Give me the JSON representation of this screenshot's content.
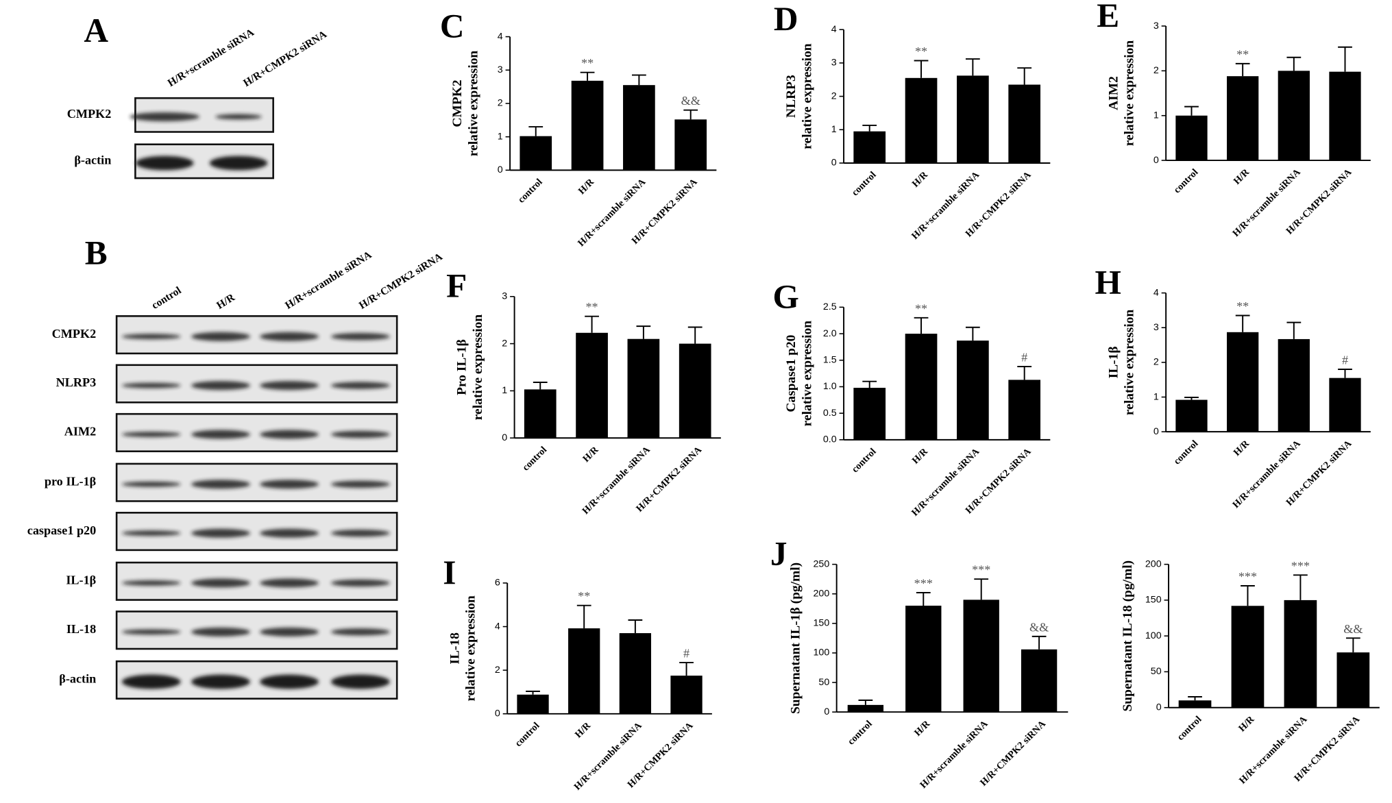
{
  "blots": [
    {
      "panel": "A",
      "lanes": [
        "H/R+scramble siRNA",
        "H/R+CMPK2 siRNA"
      ],
      "rows": [
        "CMPK2",
        "β-actin"
      ]
    },
    {
      "panel": "B",
      "lanes": [
        "control",
        "H/R",
        "H/R+scramble siRNA",
        "H/R+CMPK2 siRNA"
      ],
      "rows": [
        "CMPK2",
        "NLRP3",
        "AIM2",
        "pro IL-1β",
        "caspase1 p20",
        "IL-1β",
        "IL-18",
        "β-actin"
      ]
    }
  ],
  "chart_data": [
    {
      "type": "bar",
      "panel": "C",
      "ylabel": [
        "CMPK2",
        "relative expression"
      ],
      "categories": [
        "control",
        "H/R",
        "H/R+scramble siRNA",
        "H/R+CMPK2 siRNA"
      ],
      "values": [
        1.02,
        2.68,
        2.55,
        1.52
      ],
      "errors": [
        0.28,
        0.25,
        0.3,
        0.28
      ],
      "annotations": [
        null,
        "**",
        null,
        "&&"
      ],
      "ylim": [
        0,
        4
      ],
      "yticks": [
        0,
        1,
        2,
        3,
        4
      ],
      "color": "#000000"
    },
    {
      "type": "bar",
      "panel": "D",
      "ylabel": [
        "NLRP3",
        "relative expression"
      ],
      "categories": [
        "control",
        "H/R",
        "H/R+scramble siRNA",
        "H/R+CMPK2 siRNA"
      ],
      "values": [
        0.95,
        2.55,
        2.62,
        2.35
      ],
      "errors": [
        0.18,
        0.52,
        0.5,
        0.5
      ],
      "annotations": [
        null,
        "**",
        null,
        null
      ],
      "ylim": [
        0,
        4
      ],
      "yticks": [
        0,
        1,
        2,
        3,
        4
      ],
      "color": "#000000"
    },
    {
      "type": "bar",
      "panel": "E",
      "ylabel": [
        "AIM2",
        "relative expression"
      ],
      "categories": [
        "control",
        "H/R",
        "H/R+scramble siRNA",
        "H/R+CMPK2 siRNA"
      ],
      "values": [
        1.0,
        1.88,
        2.0,
        1.98
      ],
      "errors": [
        0.2,
        0.28,
        0.3,
        0.55
      ],
      "annotations": [
        null,
        "**",
        null,
        null
      ],
      "ylim": [
        0,
        3
      ],
      "yticks": [
        0,
        1,
        2,
        3
      ],
      "color": "#000000"
    },
    {
      "type": "bar",
      "panel": "F",
      "ylabel": [
        "Pro IL-1β",
        "relative expression"
      ],
      "categories": [
        "control",
        "H/R",
        "H/R+scramble siRNA",
        "H/R+CMPK2 siRNA"
      ],
      "values": [
        1.03,
        2.23,
        2.1,
        2.0
      ],
      "errors": [
        0.15,
        0.35,
        0.27,
        0.35
      ],
      "annotations": [
        null,
        "**",
        null,
        null
      ],
      "ylim": [
        0,
        3
      ],
      "yticks": [
        0,
        1,
        2,
        3
      ],
      "color": "#000000"
    },
    {
      "type": "bar",
      "panel": "G",
      "ylabel": [
        "Caspase1 p20",
        "relative expression"
      ],
      "categories": [
        "control",
        "H/R",
        "H/R+scramble siRNA",
        "H/R+CMPK2 siRNA"
      ],
      "values": [
        0.98,
        2.0,
        1.87,
        1.13
      ],
      "errors": [
        0.12,
        0.3,
        0.25,
        0.25
      ],
      "annotations": [
        null,
        "**",
        null,
        "#"
      ],
      "ylim": [
        0,
        2.5
      ],
      "yticks": [
        {
          "value": 0,
          "label": "0.0"
        },
        0.5,
        {
          "value": 1,
          "label": "1.0"
        },
        1.5,
        {
          "value": 2,
          "label": "2.0"
        },
        2.5
      ],
      "color": "#000000"
    },
    {
      "type": "bar",
      "panel": "H",
      "ylabel": [
        "IL-1β",
        "relative expression"
      ],
      "categories": [
        "control",
        "H/R",
        "H/R+scramble siRNA",
        "H/R+CMPK2 siRNA"
      ],
      "values": [
        0.92,
        2.87,
        2.67,
        1.55
      ],
      "errors": [
        0.07,
        0.48,
        0.48,
        0.25
      ],
      "annotations": [
        null,
        "**",
        null,
        "#"
      ],
      "ylim": [
        0,
        4
      ],
      "yticks": [
        0,
        1,
        2,
        3,
        4
      ],
      "color": "#000000"
    },
    {
      "type": "bar",
      "panel": "I",
      "ylabel": [
        "IL-18",
        "relative expression"
      ],
      "categories": [
        "control",
        "H/R",
        "H/R+scramble siRNA",
        "H/R+CMPK2 siRNA"
      ],
      "values": [
        0.88,
        3.92,
        3.7,
        1.75
      ],
      "errors": [
        0.15,
        1.05,
        0.6,
        0.6
      ],
      "annotations": [
        null,
        "**",
        null,
        "#"
      ],
      "ylim": [
        0,
        6
      ],
      "yticks": [
        0,
        2,
        4,
        6
      ],
      "color": "#000000"
    },
    {
      "type": "bar",
      "panel": "J",
      "ylabel": [
        "Supernatant IL-1β (pg/ml)"
      ],
      "categories": [
        "control",
        "H/R",
        "H/R+scramble siRNA",
        "H/R+CMPK2 siRNA"
      ],
      "values": [
        12,
        180,
        190,
        106
      ],
      "errors": [
        8,
        22,
        35,
        22
      ],
      "annotations": [
        null,
        "***",
        "***",
        "&&"
      ],
      "ylim": [
        0,
        250
      ],
      "yticks": [
        0,
        50,
        100,
        150,
        200,
        250
      ],
      "color": "#000000"
    },
    {
      "type": "bar",
      "ylabel": [
        "Supernatant IL-18 (pg/ml)"
      ],
      "categories": [
        "control",
        "H/R",
        "H/R+scramble siRNA",
        "H/R+CMPK2 siRNA"
      ],
      "values": [
        10,
        142,
        150,
        77
      ],
      "errors": [
        5,
        28,
        35,
        20
      ],
      "annotations": [
        null,
        "***",
        "***",
        "&&"
      ],
      "ylim": [
        0,
        200
      ],
      "yticks": [
        0,
        50,
        100,
        150,
        200
      ],
      "color": "#000000"
    }
  ]
}
